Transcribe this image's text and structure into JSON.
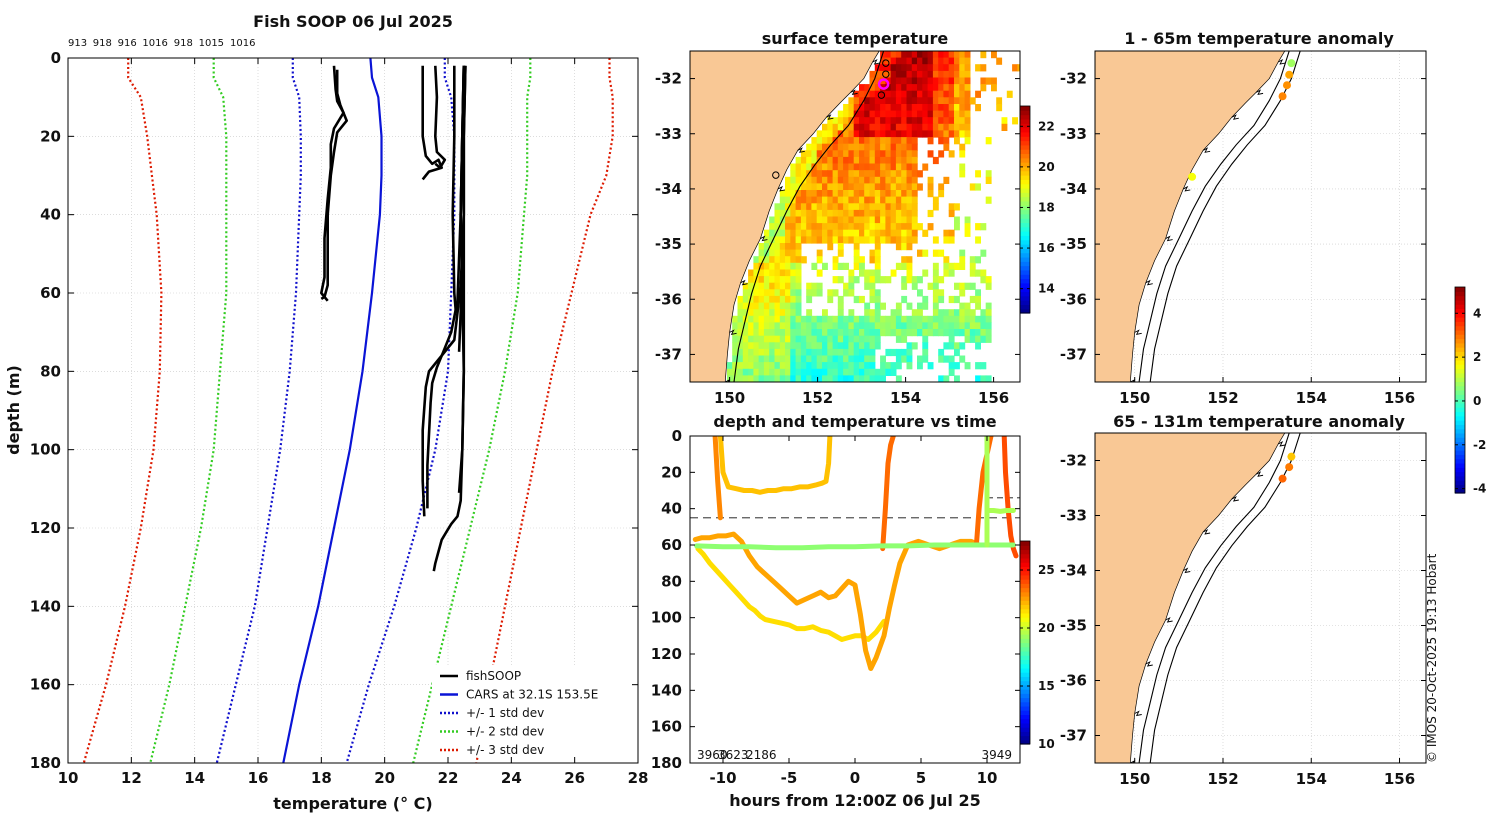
{
  "figure": {
    "credit": "© IMOS 20-Oct-2025 19:13 Hobart",
    "colors": {
      "land": "#f9c895",
      "grid": "#c8c8c8",
      "black": "#000000"
    }
  },
  "chart_data": [
    {
      "id": "profile",
      "type": "line",
      "title": "Fish SOOP 06 Jul 2025",
      "xlabel": "temperature (° C)",
      "ylabel": "depth (m)",
      "xlim": [
        10,
        28
      ],
      "ylim": [
        0,
        180
      ],
      "y_inverted": true,
      "xticks": [
        10,
        12,
        14,
        16,
        18,
        20,
        22,
        24,
        26,
        28
      ],
      "yticks": [
        0,
        20,
        40,
        60,
        80,
        100,
        120,
        140,
        160,
        180
      ],
      "top_labels": [
        "913",
        "918",
        "916",
        "1016",
        "918",
        "1015",
        "1016"
      ],
      "legend": {
        "placement": "bottom-right",
        "entries": [
          {
            "label": "fishSOOP",
            "color": "#000000",
            "style": "solid"
          },
          {
            "label": "CARS at 32.1S 153.5E",
            "color": "#0a14d6",
            "style": "solid"
          },
          {
            "label": "+/- 1 std dev",
            "color": "#1010cc",
            "style": "dotted"
          },
          {
            "label": "+/- 2 std dev",
            "color": "#33cc22",
            "style": "dotted"
          },
          {
            "label": "+/- 3 std dev",
            "color": "#dd1a00",
            "style": "dotted"
          }
        ]
      },
      "cars": {
        "depth": [
          0,
          5,
          10,
          20,
          30,
          40,
          60,
          80,
          100,
          120,
          140,
          160,
          180
        ],
        "mean": [
          19.55,
          19.6,
          19.8,
          19.9,
          19.9,
          19.85,
          19.6,
          19.3,
          18.9,
          18.4,
          17.9,
          17.3,
          16.8
        ],
        "sd1_lo": [
          17.1,
          17.1,
          17.3,
          17.35,
          17.35,
          17.3,
          17.2,
          17.0,
          16.7,
          16.3,
          15.9,
          15.3,
          14.7
        ],
        "sd1_hi": [
          21.9,
          21.9,
          22.1,
          22.2,
          22.2,
          22.2,
          22.1,
          22.0,
          21.6,
          21.0,
          20.3,
          19.5,
          18.8
        ],
        "sd2_lo": [
          14.6,
          14.6,
          14.9,
          15.0,
          15.0,
          15.0,
          15.0,
          14.8,
          14.6,
          14.2,
          13.7,
          13.2,
          12.6
        ],
        "sd2_hi": [
          24.6,
          24.6,
          24.5,
          24.5,
          24.5,
          24.4,
          24.2,
          23.8,
          23.3,
          22.7,
          22.1,
          21.5,
          20.9
        ],
        "sd3_lo": [
          11.9,
          11.9,
          12.3,
          12.5,
          12.65,
          12.8,
          12.95,
          12.9,
          12.7,
          12.3,
          11.8,
          11.2,
          10.5
        ],
        "sd3_hi": [
          27.1,
          27.1,
          27.2,
          27.2,
          27.0,
          26.5,
          25.9,
          25.3,
          24.8,
          24.3,
          23.8,
          23.3,
          22.9
        ]
      },
      "fish_profiles": [
        {
          "temp": [
            18.4,
            18.45,
            18.5,
            18.7,
            18.4,
            18.3,
            18.3,
            18.2,
            18.1,
            18.1,
            18.0,
            18.1,
            18.0
          ],
          "depth": [
            2,
            8,
            11,
            14,
            18,
            22,
            28,
            36,
            46,
            56,
            60,
            61,
            61.5
          ]
        },
        {
          "temp": [
            18.5,
            18.5,
            18.6,
            18.8,
            18.5,
            18.4,
            18.3,
            18.2,
            18.2,
            18.2,
            18.1,
            18.2
          ],
          "depth": [
            3,
            9,
            12,
            16,
            19,
            24,
            30,
            40,
            50,
            58,
            61,
            62
          ]
        },
        {
          "temp": [
            21.2,
            21.2,
            21.2,
            21.3,
            21.5,
            21.7,
            21.8,
            21.4,
            21.3,
            21.2
          ],
          "depth": [
            2,
            10,
            20,
            25,
            27,
            26,
            28,
            29,
            30,
            31
          ]
        },
        {
          "temp": [
            21.6,
            21.65,
            21.6,
            21.65,
            21.9,
            21.75,
            21.6
          ],
          "depth": [
            2,
            10,
            20,
            24,
            26,
            28,
            27
          ]
        },
        {
          "temp": [
            22.2,
            22.2,
            22.15,
            22.2,
            22.25
          ],
          "depth": [
            2,
            20,
            40,
            60,
            65
          ]
        },
        {
          "temp": [
            22.5,
            22.45,
            22.4,
            22.45,
            22.4,
            22.35
          ],
          "depth": [
            2,
            20,
            40,
            55,
            65,
            75
          ]
        },
        {
          "temp": [
            22.55,
            22.5,
            22.5,
            22.4,
            22.3,
            22.2,
            21.9,
            21.6,
            21.4,
            21.3,
            21.2,
            21.2,
            21.25
          ],
          "depth": [
            2,
            20,
            40,
            58,
            65,
            72,
            75,
            78,
            80,
            84,
            95,
            108,
            117
          ]
        },
        {
          "temp": [
            22.5,
            22.45,
            22.4,
            22.3,
            22.1,
            21.85,
            21.65,
            21.5,
            21.45,
            21.4,
            21.35,
            21.35
          ],
          "depth": [
            2,
            20,
            40,
            62,
            70,
            75,
            79,
            83,
            88,
            96,
            104,
            115
          ]
        },
        {
          "temp": [
            22.55,
            22.5,
            22.5,
            22.5,
            22.5,
            22.45,
            22.4,
            22.3,
            22.1,
            21.95,
            21.8,
            21.7,
            21.6,
            21.55
          ],
          "depth": [
            2,
            20,
            40,
            60,
            80,
            100,
            113,
            117,
            119,
            121,
            123,
            126,
            129,
            131
          ]
        },
        {
          "temp": [
            22.5,
            22.45,
            22.4,
            22.45,
            22.5,
            22.45,
            22.35
          ],
          "depth": [
            2,
            20,
            40,
            60,
            80,
            100,
            111
          ]
        }
      ]
    },
    {
      "id": "sst_map",
      "type": "heatmap",
      "title": "surface temperature",
      "lon_lim": [
        149.1,
        156.6
      ],
      "lat_lim": [
        -37.5,
        -31.5
      ],
      "xticks": [
        150,
        152,
        154,
        156
      ],
      "yticks": [
        -32,
        -33,
        -34,
        -35,
        -36,
        -37
      ],
      "colorbar": {
        "min": 12.8,
        "max": 23.0,
        "ticks": [
          14,
          16,
          18,
          20,
          22
        ]
      },
      "coast": [
        [
          153.4,
          -31.5
        ],
        [
          153.25,
          -31.7
        ],
        [
          153.05,
          -32.0
        ],
        [
          152.75,
          -32.25
        ],
        [
          152.5,
          -32.45
        ],
        [
          152.2,
          -32.7
        ],
        [
          151.9,
          -33.0
        ],
        [
          151.55,
          -33.3
        ],
        [
          151.3,
          -33.65
        ],
        [
          151.1,
          -34.0
        ],
        [
          150.9,
          -34.4
        ],
        [
          150.7,
          -34.9
        ],
        [
          150.45,
          -35.3
        ],
        [
          150.25,
          -35.7
        ],
        [
          150.1,
          -36.1
        ],
        [
          150.0,
          -36.6
        ],
        [
          149.95,
          -37.0
        ],
        [
          149.9,
          -37.5
        ]
      ],
      "shelf_edge": [
        [
          153.5,
          -31.5
        ],
        [
          153.3,
          -32.0
        ],
        [
          153.05,
          -32.4
        ],
        [
          152.7,
          -32.85
        ],
        [
          152.3,
          -33.2
        ],
        [
          151.95,
          -33.55
        ],
        [
          151.6,
          -33.95
        ],
        [
          151.3,
          -34.4
        ],
        [
          151.0,
          -34.9
        ],
        [
          150.7,
          -35.4
        ],
        [
          150.5,
          -35.9
        ],
        [
          150.35,
          -36.4
        ],
        [
          150.2,
          -36.9
        ],
        [
          150.1,
          -37.5
        ]
      ],
      "positions": [
        {
          "lon": 153.55,
          "lat": -31.72,
          "kind": "deployment"
        },
        {
          "lon": 153.55,
          "lat": -31.92,
          "kind": "deployment"
        },
        {
          "lon": 153.5,
          "lat": -32.1,
          "kind": "current"
        },
        {
          "lon": 153.45,
          "lat": -32.3,
          "kind": "deployment"
        },
        {
          "lon": 151.05,
          "lat": -33.75,
          "kind": "deployment"
        }
      ]
    },
    {
      "id": "time_series",
      "type": "scatter",
      "title": "depth and temperature vs time",
      "xlabel": "hours from 12:00Z 06 Jul 25",
      "xlim": [
        -12.5,
        12.5
      ],
      "ylim": [
        0,
        180
      ],
      "y_inverted": true,
      "xticks": [
        -10,
        -5,
        0,
        5,
        10
      ],
      "yticks": [
        0,
        20,
        40,
        60,
        80,
        100,
        120,
        140,
        160,
        180
      ],
      "colorbar": {
        "min": 10,
        "max": 27.5,
        "ticks": [
          10,
          15,
          20,
          25
        ]
      },
      "corner_labels": {
        "left": "3960",
        "left_overlap": [
          "3623",
          "2186"
        ],
        "right": "3949"
      },
      "reference_lines": [
        45,
        34
      ],
      "tracks": [
        {
          "temp": 21.5,
          "hours": [
            -11.9,
            -11.5,
            -11.0,
            -10.5,
            -10.0,
            -9.5,
            -9.0,
            -8.5,
            -8.0,
            -7.6,
            -7.2,
            -6.8,
            -6.2,
            -5.6,
            -5.0,
            -4.4,
            -3.8,
            -3.2,
            -2.6,
            -2.0,
            -1.5,
            -1.0,
            -0.5,
            0.0,
            0.5,
            1.0,
            1.6,
            2.2
          ],
          "depth": [
            62,
            65,
            70,
            74,
            78,
            82,
            86,
            90,
            94,
            96,
            99,
            101,
            102,
            103,
            104,
            106,
            106,
            105,
            107,
            108,
            110,
            112,
            111,
            110,
            110,
            112,
            108,
            102
          ]
        },
        {
          "temp": 22.5,
          "hours": [
            -12.1,
            -11.6,
            -11.0,
            -10.4,
            -9.8,
            -9.2,
            -8.6,
            -8.0,
            -7.4,
            -6.8,
            -6.2,
            -5.6,
            -5.0,
            -4.4,
            -3.8,
            -3.2,
            -2.6,
            -2.0,
            -1.5,
            -1.0,
            -0.5,
            0.0,
            0.4,
            0.8,
            1.2,
            1.6,
            2.2,
            2.6,
            3.0,
            3.4,
            4.0,
            4.8,
            5.6,
            6.4,
            7.2,
            8.0,
            8.8,
            9.4
          ],
          "depth": [
            57,
            56,
            56,
            55,
            55,
            54,
            58,
            66,
            72,
            76,
            80,
            84,
            88,
            92,
            90,
            88,
            86,
            89,
            88,
            84,
            80,
            82,
            98,
            118,
            128,
            122,
            110,
            95,
            82,
            70,
            60,
            58,
            60,
            62,
            60,
            58,
            58,
            60
          ]
        },
        {
          "temp": 22.0,
          "hours": [
            -10.2,
            -10.0,
            -9.6,
            -9.0,
            -8.4,
            -7.8,
            -7.2,
            -6.6,
            -6.0,
            -5.4,
            -4.8,
            -4.2,
            -3.6,
            -3.0,
            -2.5,
            -2.2,
            -2.0,
            -1.9
          ],
          "depth": [
            0,
            20,
            28,
            29,
            30,
            30,
            31,
            30,
            30,
            29,
            29,
            28,
            28,
            27,
            26,
            25,
            15,
            0
          ]
        },
        {
          "temp": 23.0,
          "hours": [
            -10.6,
            -10.4,
            -10.2
          ],
          "depth": [
            0,
            25,
            45
          ]
        },
        {
          "temp": 23.5,
          "hours": [
            2.1,
            2.3,
            2.5,
            2.7,
            2.9
          ],
          "depth": [
            62,
            40,
            15,
            5,
            0
          ]
        },
        {
          "temp": 23.5,
          "hours": [
            9.2,
            9.4,
            9.7,
            10.0,
            10.3
          ],
          "depth": [
            60,
            40,
            20,
            10,
            0
          ]
        },
        {
          "temp": 24.0,
          "hours": [
            11.3,
            11.4,
            11.6,
            11.8,
            12.0,
            12.2
          ],
          "depth": [
            0,
            20,
            40,
            55,
            62,
            66
          ]
        },
        {
          "temp": 19.0,
          "hours": [
            -12.0,
            -10.0,
            -8.0,
            -6.0,
            -4.0,
            -2.0,
            0.0,
            2.0,
            4.0,
            6.0,
            8.0,
            10.0,
            12.0
          ],
          "depth": [
            60.5,
            61,
            61,
            61.5,
            61.5,
            61,
            61,
            60.5,
            60.5,
            60,
            60,
            60,
            60
          ]
        },
        {
          "temp": 19.5,
          "hours": [
            10.0,
            10.5,
            11.0,
            11.5,
            12.0
          ],
          "depth": [
            41,
            41,
            41.5,
            41,
            41
          ]
        },
        {
          "temp": 19.5,
          "hours": [
            10.0,
            10.0,
            10.0,
            10.0
          ],
          "depth": [
            0,
            20,
            40,
            60
          ]
        }
      ]
    },
    {
      "id": "anomaly_shallow",
      "type": "scatter",
      "title": "1 - 65m temperature anomaly",
      "lon_lim": [
        149.1,
        156.6
      ],
      "lat_lim": [
        -37.5,
        -31.5
      ],
      "xticks": [
        150,
        152,
        154,
        156
      ],
      "yticks": [
        -32,
        -33,
        -34,
        -35,
        -36,
        -37
      ],
      "points": [
        {
          "lon": 153.55,
          "lat": -31.72,
          "anomaly": 0.8
        },
        {
          "lon": 153.5,
          "lat": -31.93,
          "anomaly": 2.5
        },
        {
          "lon": 153.45,
          "lat": -32.12,
          "anomaly": 2.7
        },
        {
          "lon": 153.35,
          "lat": -32.32,
          "anomaly": 2.8
        },
        {
          "lon": 151.3,
          "lat": -33.78,
          "anomaly": 1.6
        }
      ]
    },
    {
      "id": "anomaly_deep",
      "type": "scatter",
      "title": "65 - 131m temperature anomaly",
      "lon_lim": [
        149.1,
        156.6
      ],
      "lat_lim": [
        -37.5,
        -31.5
      ],
      "xticks": [
        150,
        152,
        154,
        156
      ],
      "yticks": [
        -32,
        -33,
        -34,
        -35,
        -36,
        -37
      ],
      "points": [
        {
          "lon": 153.55,
          "lat": -31.93,
          "anomaly": 2.2
        },
        {
          "lon": 153.5,
          "lat": -32.12,
          "anomaly": 2.9
        },
        {
          "lon": 153.35,
          "lat": -32.33,
          "anomaly": 3.1
        }
      ]
    },
    {
      "id": "anomaly_colorbar",
      "type": "colorbar",
      "min": -4.2,
      "max": 5.2,
      "ticks": [
        -4,
        -2,
        0,
        2,
        4
      ]
    }
  ]
}
